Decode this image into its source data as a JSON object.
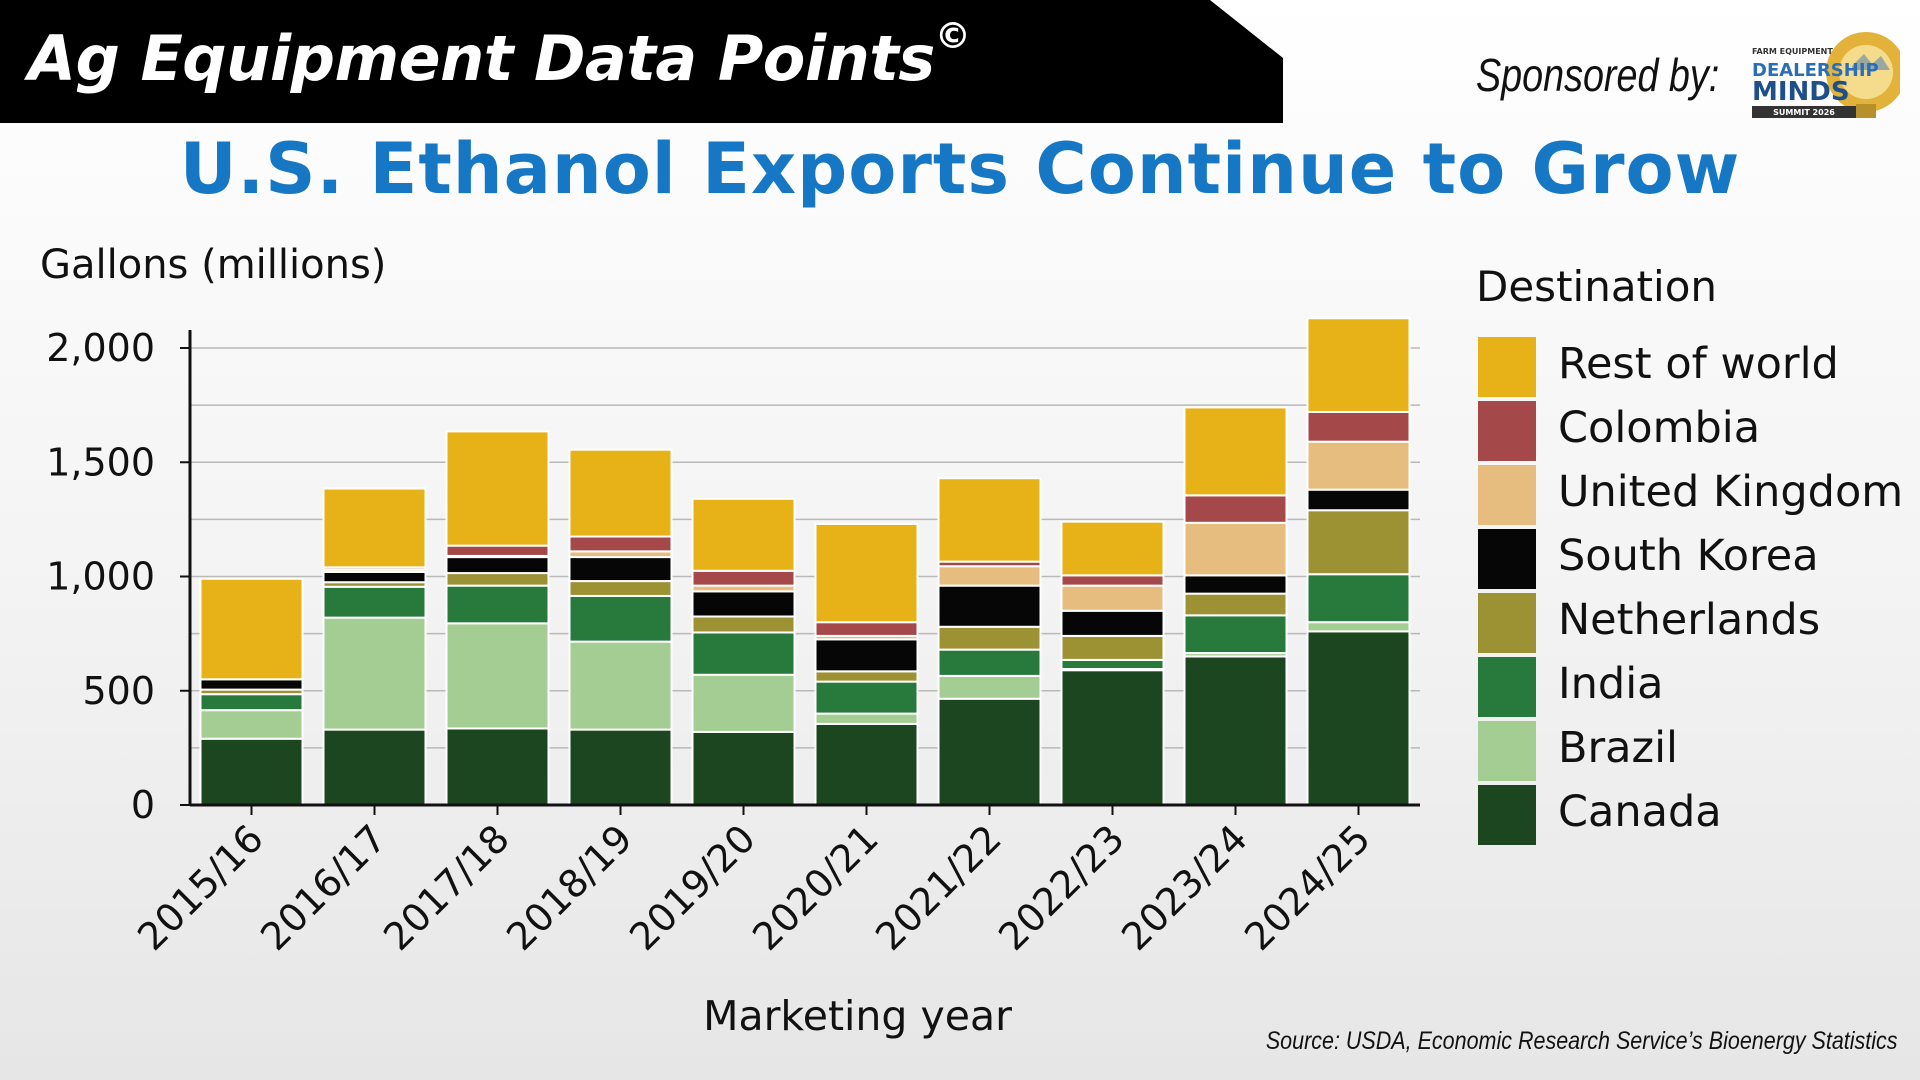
{
  "header": {
    "banner_title": "Ag Equipment Data Points",
    "banner_symbol": "©",
    "sponsor_label": "Sponsored by:",
    "sponsor_logo": {
      "line1": "FARM EQUIPMENT",
      "line2": "DEALERSHIP",
      "line3": "MINDS",
      "line4": "SUMMIT 2026"
    }
  },
  "source": "Source: USDA, Economic Research Service’s Bioenergy Statistics",
  "chart_data": {
    "type": "bar",
    "stacked": true,
    "title": "U.S. Ethanol Exports Continue to Grow",
    "ylabel": "Gallons (millions)",
    "xlabel": "Marketing year",
    "ylim": [
      0,
      2000
    ],
    "yticks": [
      0,
      500,
      1000,
      1500,
      2000
    ],
    "ytick_labels": [
      "0",
      "500",
      "1,000",
      "1,500",
      "2,000"
    ],
    "grid": "horizontal",
    "legend_title": "Destination",
    "legend_position": "right",
    "categories": [
      "2015/16",
      "2016/17",
      "2017/18",
      "2018/19",
      "2019/20",
      "2020/21",
      "2021/22",
      "2022/23",
      "2023/24",
      "2024/25"
    ],
    "series": [
      {
        "name": "Canada",
        "color": "#1c4620",
        "values": [
          290,
          330,
          335,
          330,
          320,
          355,
          465,
          590,
          650,
          760
        ]
      },
      {
        "name": "Brazil",
        "color": "#a3cd92",
        "values": [
          125,
          490,
          460,
          385,
          250,
          45,
          100,
          5,
          15,
          40
        ]
      },
      {
        "name": "India",
        "color": "#277a3c",
        "values": [
          70,
          135,
          165,
          200,
          185,
          140,
          115,
          40,
          165,
          210
        ]
      },
      {
        "name": "Netherlands",
        "color": "#9c9234",
        "values": [
          20,
          20,
          55,
          65,
          70,
          45,
          100,
          105,
          95,
          280
        ]
      },
      {
        "name": "South Korea",
        "color": "#060606",
        "values": [
          45,
          45,
          70,
          105,
          110,
          140,
          180,
          110,
          80,
          90
        ]
      },
      {
        "name": "United Kingdom",
        "color": "#e6bd7f",
        "values": [
          0,
          10,
          5,
          25,
          25,
          15,
          85,
          110,
          230,
          210
        ]
      },
      {
        "name": "Colombia",
        "color": "#a54849",
        "values": [
          0,
          10,
          45,
          65,
          65,
          60,
          20,
          45,
          120,
          130
        ]
      },
      {
        "name": "Rest of world",
        "color": "#e7b118",
        "values": [
          440,
          345,
          500,
          380,
          315,
          430,
          365,
          235,
          385,
          410
        ]
      }
    ]
  }
}
